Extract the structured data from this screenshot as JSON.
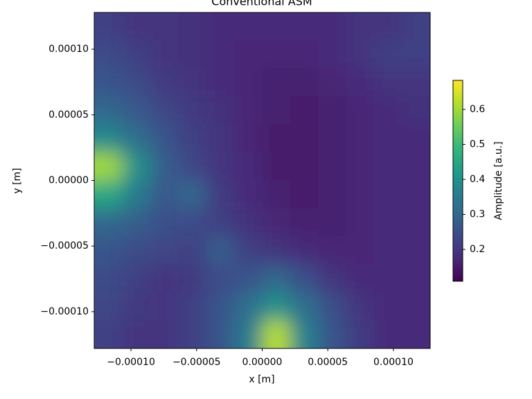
{
  "chart_data": {
    "type": "heatmap",
    "title": "Conventional ASM",
    "xlabel": "x [m]",
    "ylabel": "y [m]",
    "colorbar_label": "Amplitude [a.u.]",
    "xlim": [
      -0.000128,
      0.000128
    ],
    "ylim": [
      -0.000128,
      0.000128
    ],
    "xticks": [
      {
        "value": -0.0001,
        "label": "−0.00010"
      },
      {
        "value": -5e-05,
        "label": "−0.00005"
      },
      {
        "value": 0,
        "label": "0.00000"
      },
      5e-05,
      {
        "value": 0.0001,
        "label": "0.00010"
      }
    ],
    "yticks": [
      {
        "value": -0.0001,
        "label": "−0.00010"
      },
      {
        "value": -5e-05,
        "label": "−0.00005"
      },
      {
        "value": 0,
        "label": "0.00000"
      },
      5e-05,
      {
        "value": 0.0001,
        "label": "0.00010"
      }
    ],
    "clim": [
      0.109,
      0.683
    ],
    "cticks": [
      0.2,
      0.3,
      0.4,
      0.5,
      0.6
    ],
    "colormap": [
      "#440154",
      "#482878",
      "#3e4989",
      "#31688e",
      "#26828e",
      "#1f9e89",
      "#35b779",
      "#6ece58",
      "#b5de2b",
      "#fde725"
    ],
    "z": [
      [
        0.22,
        0.2,
        0.2,
        0.19,
        0.18,
        0.18,
        0.18,
        0.18,
        0.18,
        0.2,
        0.2,
        0.22
      ],
      [
        0.24,
        0.22,
        0.2,
        0.19,
        0.18,
        0.17,
        0.17,
        0.17,
        0.18,
        0.2,
        0.22,
        0.22
      ],
      [
        0.26,
        0.24,
        0.21,
        0.2,
        0.18,
        0.17,
        0.16,
        0.16,
        0.17,
        0.18,
        0.2,
        0.2
      ],
      [
        0.3,
        0.27,
        0.23,
        0.21,
        0.19,
        0.17,
        0.16,
        0.15,
        0.16,
        0.17,
        0.18,
        0.19
      ],
      [
        0.38,
        0.32,
        0.26,
        0.22,
        0.2,
        0.17,
        0.15,
        0.15,
        0.16,
        0.17,
        0.18,
        0.18
      ],
      [
        0.6,
        0.4,
        0.28,
        0.23,
        0.2,
        0.18,
        0.15,
        0.15,
        0.16,
        0.17,
        0.18,
        0.18
      ],
      [
        0.45,
        0.35,
        0.27,
        0.3,
        0.21,
        0.18,
        0.16,
        0.15,
        0.16,
        0.17,
        0.18,
        0.18
      ],
      [
        0.3,
        0.28,
        0.25,
        0.24,
        0.22,
        0.19,
        0.17,
        0.16,
        0.16,
        0.17,
        0.18,
        0.18
      ],
      [
        0.26,
        0.24,
        0.23,
        0.22,
        0.28,
        0.22,
        0.2,
        0.18,
        0.17,
        0.17,
        0.18,
        0.18
      ],
      [
        0.24,
        0.22,
        0.2,
        0.21,
        0.24,
        0.26,
        0.3,
        0.25,
        0.2,
        0.18,
        0.18,
        0.18
      ],
      [
        0.23,
        0.21,
        0.2,
        0.22,
        0.26,
        0.32,
        0.4,
        0.32,
        0.25,
        0.2,
        0.18,
        0.18
      ],
      [
        0.22,
        0.2,
        0.2,
        0.22,
        0.26,
        0.35,
        0.62,
        0.36,
        0.26,
        0.21,
        0.18,
        0.18
      ]
    ]
  }
}
